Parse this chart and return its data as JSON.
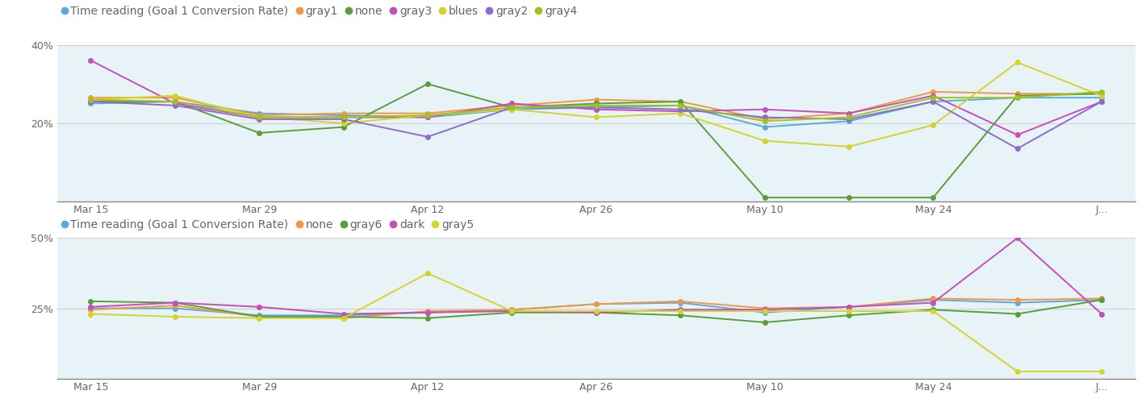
{
  "x_ticks_pos": [
    0,
    2,
    4,
    6,
    8,
    10,
    12
  ],
  "x_tick_labels": [
    "Mar 15",
    "Mar 29",
    "Apr 12",
    "Apr 26",
    "May 10",
    "May 24",
    "J..."
  ],
  "chart1": {
    "ylim": [
      0,
      40
    ],
    "yticks": [
      20,
      40
    ],
    "ytick_labels": [
      "20%",
      "40%"
    ],
    "bg": "#e8f3f8",
    "legend_order": [
      "Time reading (Goal 1 Conversion Rate)",
      "gray1",
      "none",
      "gray3",
      "blues",
      "gray2",
      "gray4"
    ],
    "series": {
      "Time reading (Goal 1 Conversion Rate)": {
        "color": "#5aabdc",
        "values": [
          25.0,
          25.5,
          22.5,
          22.0,
          21.5,
          23.5,
          24.0,
          24.5,
          19.0,
          20.5,
          25.5,
          26.5,
          26.5
        ]
      },
      "gray1": {
        "color": "#f59642",
        "values": [
          26.5,
          26.5,
          22.0,
          22.5,
          22.5,
          24.5,
          26.0,
          25.5,
          21.0,
          22.5,
          28.0,
          27.5,
          27.5
        ]
      },
      "none": {
        "color": "#5a9e3a",
        "values": [
          25.5,
          25.5,
          17.5,
          19.0,
          30.0,
          24.0,
          25.0,
          25.5,
          1.0,
          1.0,
          1.0,
          27.0,
          27.5
        ]
      },
      "gray3": {
        "color": "#c44fbc",
        "values": [
          36.0,
          25.0,
          21.5,
          21.5,
          21.5,
          25.0,
          23.5,
          23.0,
          23.5,
          22.5,
          27.0,
          17.0,
          25.5
        ]
      },
      "blues": {
        "color": "#d4d42a",
        "values": [
          26.0,
          27.0,
          21.5,
          20.0,
          22.0,
          23.5,
          21.5,
          22.5,
          15.5,
          14.0,
          19.5,
          35.5,
          27.0
        ]
      },
      "gray2": {
        "color": "#8f6bcc",
        "values": [
          25.5,
          24.5,
          21.0,
          21.0,
          16.5,
          24.0,
          24.0,
          23.5,
          21.5,
          21.0,
          25.5,
          13.5,
          25.5
        ]
      },
      "gray4": {
        "color": "#9ec420",
        "values": [
          26.0,
          25.5,
          21.5,
          21.5,
          22.0,
          24.0,
          24.5,
          24.5,
          20.5,
          21.5,
          26.5,
          26.5,
          28.0
        ]
      }
    }
  },
  "chart2": {
    "ylim": [
      0,
      50
    ],
    "yticks": [
      25,
      50
    ],
    "ytick_labels": [
      "25%",
      "50%"
    ],
    "bg": "#e8f3f8",
    "legend_order": [
      "Time reading (Goal 1 Conversion Rate)",
      "none",
      "gray6",
      "dark",
      "gray5"
    ],
    "series": {
      "Time reading (Goal 1 Conversion Rate)": {
        "color": "#5aabdc",
        "values": [
          25.0,
          25.0,
          22.5,
          22.5,
          23.5,
          24.5,
          26.5,
          27.0,
          23.5,
          25.5,
          28.0,
          27.0,
          28.0
        ]
      },
      "none": {
        "color": "#f59642",
        "values": [
          24.5,
          26.0,
          22.0,
          21.5,
          24.0,
          24.5,
          26.5,
          27.5,
          25.0,
          25.5,
          28.5,
          28.0,
          28.5
        ]
      },
      "gray6": {
        "color": "#5a9e3a",
        "values": [
          27.5,
          27.0,
          22.0,
          22.0,
          21.5,
          23.5,
          23.5,
          22.5,
          20.0,
          22.5,
          24.5,
          23.0,
          28.0
        ]
      },
      "dark": {
        "color": "#c44fbc",
        "values": [
          25.5,
          27.0,
          25.5,
          23.0,
          23.5,
          24.0,
          23.5,
          24.5,
          24.5,
          25.5,
          27.0,
          50.0,
          23.0
        ]
      },
      "gray5": {
        "color": "#d4d42a",
        "values": [
          23.0,
          22.0,
          21.5,
          21.5,
          37.5,
          24.0,
          24.0,
          24.0,
          24.0,
          24.0,
          24.0,
          2.5,
          2.5
        ]
      }
    }
  },
  "text_color": "#666666",
  "axis_line_color": "#888888",
  "grid_color": "#d0d0d0",
  "legend_fontsize": 10,
  "tick_fontsize": 9,
  "line_width": 1.4,
  "marker_size": 4
}
